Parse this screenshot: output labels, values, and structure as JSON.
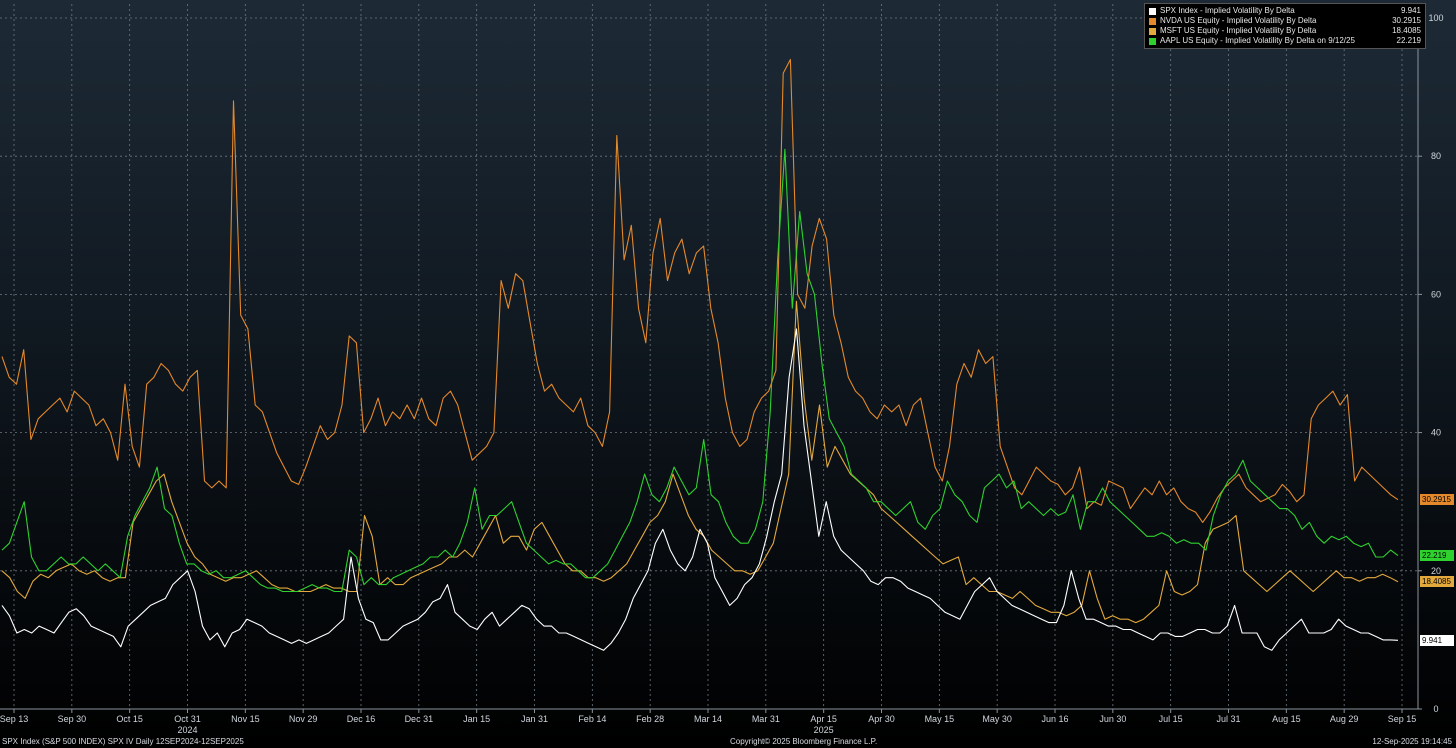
{
  "chart_data": {
    "type": "line",
    "y_axis": {
      "ticks": [
        0,
        20,
        40,
        60,
        80,
        100
      ],
      "ylim": [
        0,
        100
      ],
      "position": "right"
    },
    "x_axis": {
      "ticks": [
        "Sep 13",
        "Sep 30",
        "Oct 15",
        "Oct 31",
        "Nov 15",
        "Nov 29",
        "Dec 16",
        "Dec 31",
        "Jan 15",
        "Jan 31",
        "Feb 14",
        "Feb 28",
        "Mar 14",
        "Mar 31",
        "Apr 15",
        "Apr 30",
        "May 15",
        "May 30",
        "Jun 16",
        "Jun 30",
        "Jul 15",
        "Jul 31",
        "Aug 15",
        "Aug 29",
        "Sep 15"
      ],
      "year_labels": [
        "2024",
        "2025"
      ]
    },
    "grid": true,
    "legend_placement": "top-right",
    "series": [
      {
        "name": "SPX Index - Implied Volatility By Delta",
        "color": "#ffffff",
        "last_value": "9.941",
        "values": [
          15,
          13.5,
          11,
          11.5,
          11,
          12,
          11.5,
          11,
          12.5,
          14,
          14.5,
          13.5,
          12,
          11.5,
          11,
          10.5,
          9,
          12,
          13,
          14,
          15,
          15.5,
          16,
          18,
          19,
          20,
          17,
          12,
          10,
          11,
          9,
          11,
          11.5,
          13,
          12.5,
          12,
          11,
          10.5,
          10,
          9.5,
          10,
          9.5,
          10,
          10.5,
          11,
          12,
          13,
          22,
          16,
          13,
          12.5,
          10,
          10,
          11,
          12,
          12.5,
          13,
          14,
          15.5,
          16,
          18,
          14,
          13,
          12,
          11.5,
          13,
          14,
          12,
          13,
          14,
          15,
          14.5,
          13,
          12,
          12,
          11,
          11,
          10.5,
          10,
          9.5,
          9,
          8.5,
          9.5,
          11,
          13,
          16,
          18,
          20,
          24,
          26,
          23,
          21,
          20,
          22,
          26,
          24,
          19,
          17,
          15,
          16,
          18,
          19,
          21,
          25,
          30,
          34,
          48,
          55,
          41,
          33,
          25,
          30,
          25,
          23,
          22,
          21,
          20,
          18.5,
          18,
          19,
          19,
          18.5,
          17.5,
          17,
          16.5,
          16,
          15,
          14,
          13.5,
          13,
          15,
          17,
          18,
          19,
          17,
          16,
          15,
          14.5,
          14,
          13.5,
          13,
          12.5,
          12.5,
          15,
          20,
          16,
          13,
          13,
          12.5,
          12,
          12,
          11.5,
          11.5,
          11,
          10.5,
          10,
          11,
          11,
          10.5,
          10.5,
          11,
          11.5,
          11.5,
          11,
          11,
          12,
          15,
          11,
          11,
          11,
          9,
          8.5,
          10,
          11,
          12,
          13,
          11,
          11,
          11,
          11.5,
          13,
          12,
          11.5,
          11,
          11,
          10.5,
          10,
          10,
          9.941
        ]
      },
      {
        "name": "NVDA US Equity - Implied Volatility By Delta",
        "color": "#e4892b",
        "last_value": "30.2915",
        "values": [
          51,
          48,
          47,
          52,
          39,
          42,
          43,
          44,
          45,
          43,
          46,
          45,
          44,
          41,
          42,
          40,
          36,
          47,
          38,
          35,
          47,
          48,
          50,
          49,
          47,
          46,
          48,
          49,
          33,
          32,
          33,
          32,
          88,
          57,
          55,
          44,
          43,
          40,
          37,
          35,
          33,
          32.5,
          35,
          38,
          41,
          39,
          40,
          44,
          54,
          53,
          40,
          42,
          45,
          41,
          43,
          42,
          44,
          42,
          45,
          42,
          41,
          45,
          46,
          44,
          40,
          36,
          37,
          38,
          40,
          62,
          58,
          63,
          62,
          56,
          50,
          46,
          47,
          45,
          44,
          43,
          45,
          41,
          40,
          38,
          43,
          83,
          65,
          70,
          58,
          53,
          66,
          71,
          62,
          66,
          68,
          63,
          66,
          67,
          58,
          53,
          45,
          40,
          38,
          39,
          43,
          45,
          46,
          49,
          92,
          94,
          60,
          58,
          67,
          71,
          68,
          57,
          53,
          48,
          46,
          45,
          43,
          42,
          44,
          43,
          44,
          41,
          44,
          45,
          40,
          35,
          33,
          38,
          47,
          50,
          48,
          52,
          50,
          51,
          38,
          35,
          32,
          31,
          33,
          35,
          34,
          33,
          32.5,
          31,
          32,
          35,
          29,
          30,
          29.5,
          33,
          32.5,
          32,
          29,
          30.5,
          32,
          31,
          33,
          31,
          32,
          30,
          29,
          28.5,
          27,
          28.5,
          30.5,
          32,
          33,
          34,
          32,
          31,
          30,
          30.5,
          31,
          32.5,
          31.5,
          30,
          31,
          42,
          44,
          45,
          46,
          44,
          45.5,
          33,
          35,
          34,
          33,
          32,
          31,
          30.2915
        ]
      },
      {
        "name": "MSFT US Equity - Implied Volatility By Delta",
        "color": "#e3a93d",
        "last_value": "18.4085",
        "values": [
          20,
          19,
          17,
          16,
          18.5,
          19.5,
          19,
          20,
          20.5,
          21,
          20,
          19.5,
          20,
          19,
          18.5,
          19,
          19,
          27,
          29,
          31,
          33,
          34,
          30,
          27,
          24,
          22,
          21,
          19.5,
          19,
          18.5,
          19,
          19,
          19.5,
          20,
          19,
          18,
          17.5,
          17.5,
          17,
          17,
          17,
          17.5,
          18,
          17.5,
          17.5,
          17,
          17,
          28,
          25,
          18,
          19,
          18,
          18,
          19,
          19.5,
          20,
          20.5,
          21,
          22,
          22,
          23,
          22,
          24,
          26,
          28,
          24,
          25,
          25,
          23,
          26,
          27,
          25,
          23,
          21,
          20,
          20,
          19,
          19,
          18.5,
          19,
          20,
          21,
          23,
          25,
          27,
          28,
          30,
          34,
          31,
          28,
          26,
          25,
          23,
          22,
          21,
          20,
          20,
          19.5,
          20,
          22,
          24,
          29,
          34,
          59,
          45,
          36,
          44,
          35,
          38,
          36,
          34,
          33,
          32,
          31,
          29,
          28,
          27,
          26,
          25,
          24,
          23,
          22,
          21,
          21.5,
          22,
          18,
          19,
          18,
          17,
          17,
          16.5,
          16,
          17,
          16,
          15,
          14.5,
          14,
          14,
          13.5,
          14,
          15,
          20,
          16,
          13,
          13.5,
          13,
          13,
          12.5,
          13,
          14,
          15,
          20,
          17,
          16.5,
          17,
          18,
          24,
          26,
          26.5,
          27,
          28,
          20,
          19,
          18,
          17,
          18,
          19,
          20,
          19,
          18,
          17,
          18,
          19,
          20,
          19,
          19,
          18.5,
          19,
          19,
          19.5,
          19,
          18.4085
        ]
      },
      {
        "name": "AAPL US Equity - Implied Volatility By Delta",
        "color": "#2fd12f",
        "last_value": "22.219",
        "values": [
          23,
          24,
          27,
          30,
          22,
          20,
          20,
          21,
          22,
          21,
          21,
          22,
          21,
          20,
          21,
          20,
          19,
          25,
          28,
          30,
          32,
          35,
          29,
          28,
          24,
          21,
          21,
          20,
          19.5,
          20,
          19,
          19,
          19.5,
          20,
          19,
          18,
          17.5,
          17.5,
          17,
          17,
          17,
          17.5,
          18,
          17.5,
          17.5,
          17,
          17,
          23,
          22,
          18,
          19,
          18,
          18,
          19,
          19.5,
          20,
          20.5,
          21,
          22,
          22,
          23,
          22,
          24,
          27,
          32,
          26,
          28,
          28,
          29,
          30,
          27,
          24,
          23,
          22,
          21,
          21.5,
          21,
          21,
          20,
          19,
          19,
          20,
          21,
          23,
          25,
          27,
          30,
          34,
          31,
          30,
          32,
          35,
          33,
          31,
          32,
          39,
          31,
          30,
          27,
          25,
          24,
          24,
          26,
          30,
          43,
          65,
          81,
          58,
          72,
          63,
          60,
          50,
          42,
          40,
          38,
          34,
          33,
          32,
          30,
          30,
          29,
          28,
          29,
          30,
          27,
          26,
          28,
          29,
          33,
          31,
          30,
          28,
          27,
          32,
          33,
          34,
          32,
          33,
          29,
          30,
          29,
          28,
          29,
          28,
          28.5,
          31,
          26,
          30,
          30,
          32,
          30,
          29,
          28,
          27,
          26,
          25,
          25,
          25.5,
          25,
          24,
          24.5,
          24,
          24,
          23,
          28,
          31,
          33,
          34,
          36,
          33,
          32,
          31,
          30,
          29,
          29,
          28,
          26,
          27,
          25,
          24,
          25,
          24.5,
          25,
          24,
          23.5,
          24,
          22,
          22,
          23,
          22.219
        ]
      }
    ]
  },
  "legend": {
    "rows": [
      {
        "name": "SPX Index - Implied Volatility By Delta",
        "value": "9.941",
        "color": "#ffffff"
      },
      {
        "name": "NVDA US Equity - Implied Volatility By Delta",
        "value": "30.2915",
        "color": "#e4892b"
      },
      {
        "name": "MSFT US Equity - Implied Volatility By Delta",
        "value": "18.4085",
        "color": "#e3a93d"
      },
      {
        "name": "AAPL US Equity - Implied Volatility By Delta on 9/12/25",
        "value": "22.219",
        "color": "#2fd12f"
      }
    ]
  },
  "footer": {
    "left": "SPX Index (S&P 500 INDEX) SPX IV  Daily 12SEP2024-12SEP2025",
    "center": "Copyright© 2025 Bloomberg Finance L.P.",
    "right": "12-Sep-2025 19:14:45"
  }
}
